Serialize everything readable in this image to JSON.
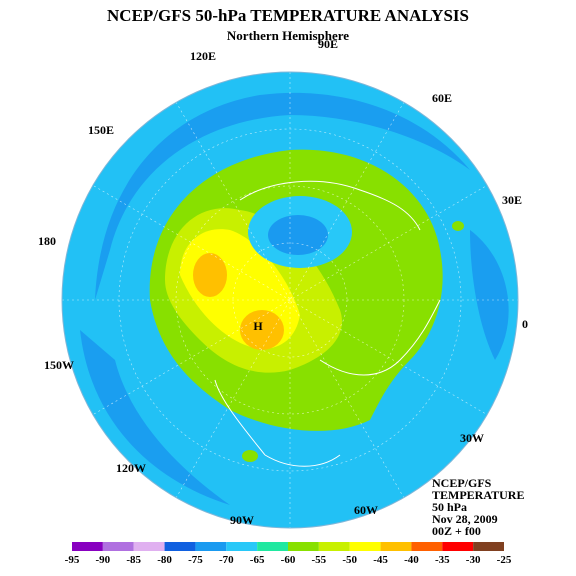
{
  "title": "NCEP/GFS 50-hPa TEMPERATURE ANALYSIS",
  "subtitle": "Northern Hemisphere",
  "info": [
    "NCEP/GFS",
    "TEMPERATURE",
    "50 hPa",
    "Nov 28, 2009",
    "00Z + f00"
  ],
  "high_marker": "H",
  "longitude_labels": [
    "90E",
    "60E",
    "30E",
    "0",
    "30W",
    "60W",
    "90W",
    "120W",
    "150W",
    "180",
    "150E",
    "120E"
  ],
  "colorbar": {
    "ticks": [
      "-95",
      "-90",
      "-85",
      "-80",
      "-75",
      "-70",
      "-65",
      "-60",
      "-55",
      "-50",
      "-45",
      "-40",
      "-35",
      "-30",
      "-25"
    ],
    "colors": [
      "#8800c0",
      "#b070e0",
      "#e0b0f0",
      "#1060e0",
      "#1a9af0",
      "#28c8f8",
      "#20e8a0",
      "#88e000",
      "#c8f000",
      "#ffff00",
      "#ffc000",
      "#ff6000",
      "#ff0000",
      "#804020"
    ]
  },
  "colors": {
    "ocean_background": "#22c1f5",
    "cold_band": "#1a9af0",
    "vortex_core": "#1060e0",
    "ring": "#88e000",
    "warm_1": "#c8f000",
    "warm_2": "#ffff00",
    "warm_3": "#ffc000"
  }
}
